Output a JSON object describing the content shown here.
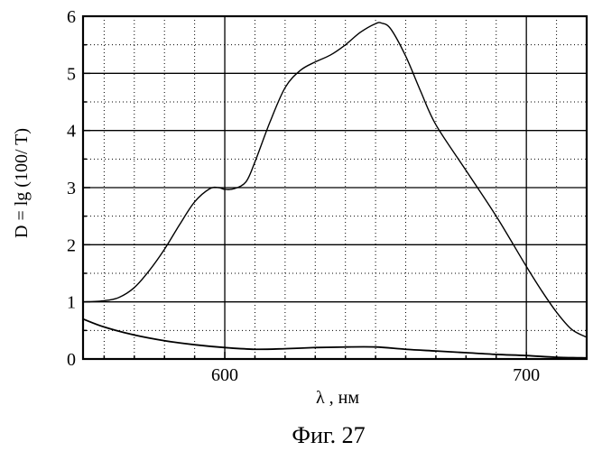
{
  "chart_data": {
    "type": "line",
    "xlabel": "λ , нм",
    "ylabel": "D = lg (100/ T)",
    "caption": "Фиг. 27",
    "xlim": [
      553,
      720
    ],
    "ylim": [
      0,
      6
    ],
    "x_major_ticks": [
      600,
      700
    ],
    "x_tick_labels": [
      "600",
      "700"
    ],
    "x_minor_step": 10,
    "y_major_ticks": [
      0,
      1,
      2,
      3,
      4,
      5,
      6
    ],
    "y_tick_labels": [
      "0",
      "1",
      "2",
      "3",
      "4",
      "5",
      "6"
    ],
    "y_minor_step": 0.5,
    "grid": true,
    "series": [
      {
        "x": [
          553,
          560,
          565,
          570,
          575,
          580,
          585,
          590,
          595,
          598,
          600,
          603,
          607,
          610,
          615,
          620,
          625,
          630,
          635,
          640,
          645,
          650,
          652,
          655,
          660,
          665,
          670,
          680,
          690,
          700,
          705,
          710,
          715,
          720
        ],
        "y": [
          1.0,
          1.02,
          1.08,
          1.25,
          1.55,
          1.92,
          2.35,
          2.75,
          2.98,
          3.0,
          2.97,
          2.98,
          3.1,
          3.45,
          4.15,
          4.75,
          5.05,
          5.2,
          5.32,
          5.5,
          5.72,
          5.87,
          5.88,
          5.78,
          5.3,
          4.68,
          4.1,
          3.3,
          2.5,
          1.62,
          1.2,
          0.82,
          0.52,
          0.38
        ]
      },
      {
        "x": [
          553,
          560,
          570,
          580,
          590,
          600,
          610,
          620,
          630,
          640,
          650,
          660,
          670,
          680,
          690,
          700,
          710,
          720
        ],
        "y": [
          0.7,
          0.56,
          0.42,
          0.32,
          0.25,
          0.2,
          0.17,
          0.18,
          0.2,
          0.21,
          0.21,
          0.17,
          0.14,
          0.11,
          0.08,
          0.06,
          0.03,
          0.02
        ]
      },
      {
        "x": [
          553,
          600,
          650,
          700,
          720
        ],
        "y": [
          0.0,
          0.0,
          0.0,
          0.0,
          0.0
        ]
      }
    ]
  }
}
